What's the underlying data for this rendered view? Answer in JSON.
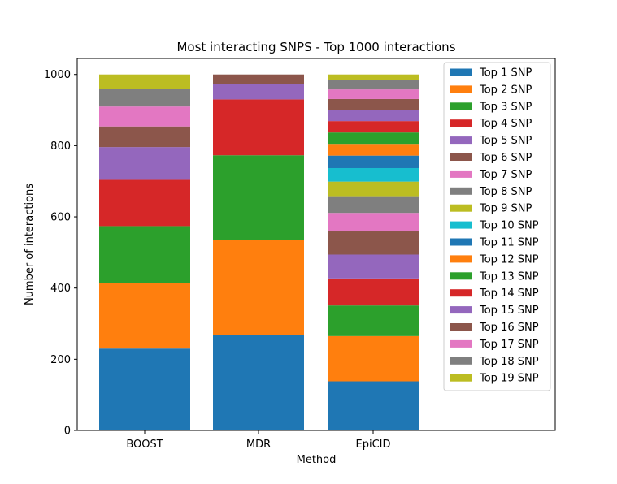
{
  "chart_data": {
    "type": "bar",
    "stacked": true,
    "title": "Most interacting SNPS - Top 1000 interactions",
    "xlabel": "Method",
    "ylabel": "Number of interactions",
    "categories": [
      "BOOST",
      "MDR",
      "EpiCID"
    ],
    "ylim": [
      0,
      1045
    ],
    "yticks": [
      0,
      200,
      400,
      600,
      800,
      1000
    ],
    "grid": false,
    "legend_position": "top-right",
    "series": [
      {
        "name": "Top 1 SNP",
        "color": "#1f77b4",
        "values": [
          230,
          267,
          138
        ]
      },
      {
        "name": "Top 2 SNP",
        "color": "#ff7f0e",
        "values": [
          184,
          268,
          127
        ]
      },
      {
        "name": "Top 3 SNP",
        "color": "#2ca02c",
        "values": [
          160,
          238,
          86
        ]
      },
      {
        "name": "Top 4 SNP",
        "color": "#d62728",
        "values": [
          130,
          157,
          76
        ]
      },
      {
        "name": "Top 5 SNP",
        "color": "#9467bd",
        "values": [
          92,
          43,
          67
        ]
      },
      {
        "name": "Top 6 SNP",
        "color": "#8c564b",
        "values": [
          58,
          27,
          65
        ]
      },
      {
        "name": "Top 7 SNP",
        "color": "#e377c2",
        "values": [
          56,
          0,
          52
        ]
      },
      {
        "name": "Top 8 SNP",
        "color": "#7f7f7f",
        "values": [
          50,
          0,
          47
        ]
      },
      {
        "name": "Top 9 SNP",
        "color": "#bcbd22",
        "values": [
          40,
          0,
          41
        ]
      },
      {
        "name": "Top 10 SNP",
        "color": "#17becf",
        "values": [
          0,
          0,
          38
        ]
      },
      {
        "name": "Top 11 SNP",
        "color": "#1f77b4",
        "values": [
          0,
          0,
          35
        ]
      },
      {
        "name": "Top 12 SNP",
        "color": "#ff7f0e",
        "values": [
          0,
          0,
          33
        ]
      },
      {
        "name": "Top 13 SNP",
        "color": "#2ca02c",
        "values": [
          0,
          0,
          32
        ]
      },
      {
        "name": "Top 14 SNP",
        "color": "#d62728",
        "values": [
          0,
          0,
          32
        ]
      },
      {
        "name": "Top 15 SNP",
        "color": "#9467bd",
        "values": [
          0,
          0,
          32
        ]
      },
      {
        "name": "Top 16 SNP",
        "color": "#8c564b",
        "values": [
          0,
          0,
          30
        ]
      },
      {
        "name": "Top 17 SNP",
        "color": "#e377c2",
        "values": [
          0,
          0,
          27
        ]
      },
      {
        "name": "Top 18 SNP",
        "color": "#7f7f7f",
        "values": [
          0,
          0,
          26
        ]
      },
      {
        "name": "Top 19 SNP",
        "color": "#bcbd22",
        "values": [
          0,
          0,
          16
        ]
      }
    ]
  }
}
